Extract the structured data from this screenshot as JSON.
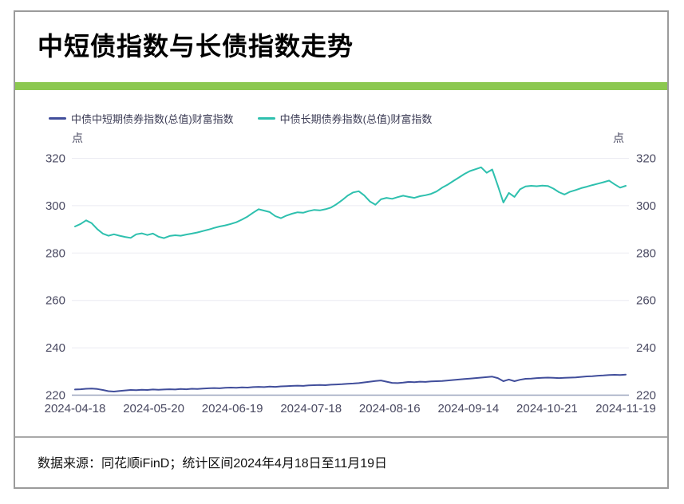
{
  "header": {
    "title": "中短债指数与长债指数走势",
    "accent_color": "#8CC850"
  },
  "footer": {
    "source_text": "数据来源：同花顺iFinD；统计区间2024年4月18日至11月19日"
  },
  "chart_data": {
    "type": "line",
    "title": "",
    "unit": "点",
    "ylim": [
      220,
      320
    ],
    "y_ticks": [
      220,
      240,
      260,
      280,
      300,
      320
    ],
    "grid": true,
    "legend_position": "top-left",
    "x_tick_labels": [
      "2024-04-18",
      "2024-05-20",
      "2024-06-19",
      "2024-07-18",
      "2024-08-16",
      "2024-09-14",
      "2024-10-21",
      "2024-11-19"
    ],
    "axis_text_color": "#4a4a62",
    "grid_color": "#ebebf2",
    "baseline_color": "#9aa3bd",
    "series": [
      {
        "name": "中债中短期债券指数(总值)财富指数",
        "color": "#414E9B",
        "values": [
          222.4,
          222.5,
          222.7,
          222.8,
          222.6,
          222.2,
          221.7,
          221.5,
          221.8,
          222.0,
          222.2,
          222.1,
          222.3,
          222.2,
          222.4,
          222.3,
          222.4,
          222.5,
          222.4,
          222.6,
          222.5,
          222.7,
          222.6,
          222.8,
          222.9,
          223.0,
          222.9,
          223.1,
          223.2,
          223.1,
          223.3,
          223.2,
          223.4,
          223.5,
          223.4,
          223.6,
          223.5,
          223.7,
          223.8,
          223.9,
          224.0,
          223.9,
          224.1,
          224.2,
          224.3,
          224.2,
          224.4,
          224.5,
          224.6,
          224.8,
          224.9,
          225.1,
          225.4,
          225.7,
          226.0,
          226.2,
          225.7,
          225.2,
          225.1,
          225.3,
          225.6,
          225.5,
          225.7,
          225.6,
          225.8,
          225.9,
          226.0,
          226.2,
          226.4,
          226.6,
          226.8,
          227.0,
          227.2,
          227.4,
          227.6,
          227.8,
          227.2,
          225.9,
          226.6,
          225.9,
          226.5,
          226.9,
          227.0,
          227.2,
          227.3,
          227.4,
          227.3,
          227.2,
          227.3,
          227.4,
          227.5,
          227.7,
          227.9,
          228.0,
          228.2,
          228.3,
          228.5,
          228.6,
          228.5,
          228.7
        ]
      },
      {
        "name": "中债长期债券指数(总值)财富指数",
        "color": "#2EC0AE",
        "values": [
          291.2,
          292.3,
          293.8,
          292.6,
          290.1,
          288.2,
          287.3,
          287.9,
          287.3,
          286.8,
          286.4,
          287.9,
          288.3,
          287.6,
          288.2,
          286.9,
          286.3,
          287.2,
          287.5,
          287.3,
          287.8,
          288.2,
          288.7,
          289.3,
          289.9,
          290.6,
          291.2,
          291.7,
          292.3,
          293.0,
          294.1,
          295.4,
          297.0,
          298.5,
          297.9,
          297.3,
          295.6,
          294.7,
          295.8,
          296.6,
          297.2,
          297.0,
          297.7,
          298.2,
          298.0,
          298.5,
          299.2,
          300.6,
          302.3,
          304.2,
          305.6,
          306.1,
          304.3,
          301.8,
          300.4,
          302.7,
          303.3,
          302.9,
          303.6,
          304.2,
          303.7,
          303.3,
          304.0,
          304.4,
          305.0,
          306.0,
          307.6,
          308.9,
          310.4,
          311.9,
          313.4,
          314.6,
          315.4,
          316.2,
          313.9,
          315.3,
          308.5,
          301.3,
          305.4,
          303.7,
          306.9,
          308.1,
          308.4,
          308.2,
          308.5,
          308.3,
          307.2,
          305.7,
          304.7,
          305.9,
          306.6,
          307.4,
          308.0,
          308.7,
          309.3,
          309.9,
          310.6,
          309.0,
          307.6,
          308.4
        ]
      }
    ]
  }
}
